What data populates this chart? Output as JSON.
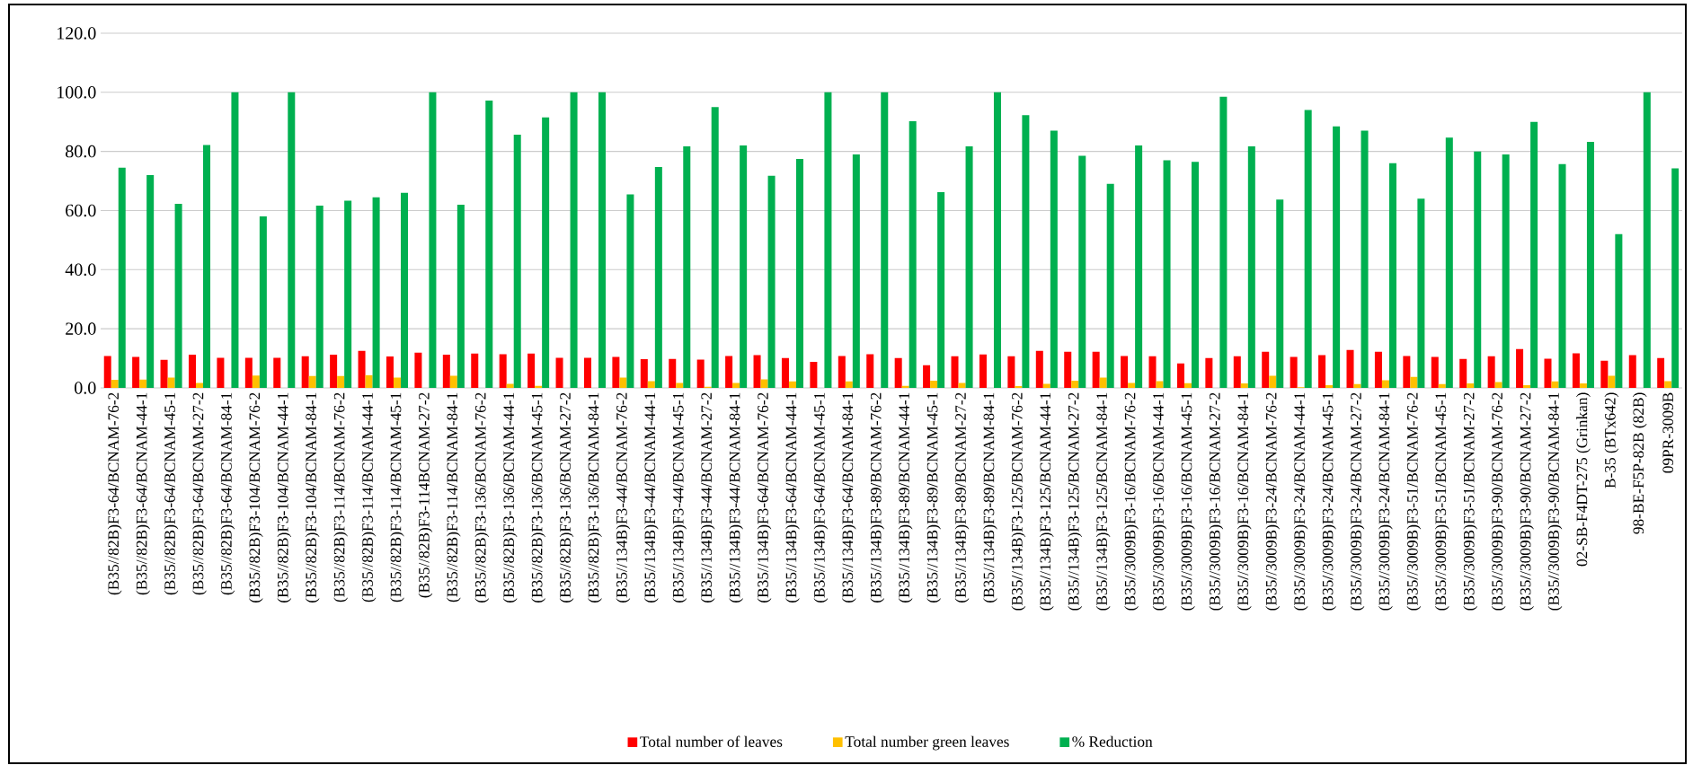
{
  "chart_data": {
    "type": "bar",
    "categories": [
      "(B35//82B)F3-64/BCNAM-76-2",
      "(B35//82B)F3-64/BCNAM-44-1",
      "(B35//82B)F3-64/BCNAM-45-1",
      "(B35//82B)F3-64/BCNAM-27-2",
      "(B35//82B)F3-64/BCNAM-84-1",
      "(B35//82B)F3-104/BCNAM-76-2",
      "(B35//82B)F3-104/BCNAM-44-1",
      "(B35//82B)F3-104/BCNAM-84-1",
      "(B35//82B)F3-114/BCNAM-76-2",
      "(B35//82B)F3-114/BCNAM-44-1",
      "(B35//82B)F3-114/BCNAM-45-1",
      "(B35//82B)F3-114BCNAM-27-2",
      "(B35//82B)F3-114/BCNAM-84-1",
      "(B35//82B)F3-136/BCNAM-76-2",
      "(B35//82B)F3-136/BCNAM-44-1",
      "(B35//82B)F3-136/BCNAM-45-1",
      "(B35//82B)F3-136/BCNAM-27-2",
      "(B35//82B)F3-136/BCNAM-84-1",
      "(B35//134B)F3-44/BCNAM-76-2",
      "(B35//134B)F3-44/BCNAM-44-1",
      "(B35//134B)F3-44/BCNAM-45-1",
      "(B35//134B)F3-44/BCNAM-27-2",
      "(B35//134B)F3-44/BCNAM-84-1",
      "(B35//134B)F3-64/BCNAM-76-2",
      "(B35//134B)F3-64/BCNAM-44-1",
      "(B35//134B)F3-64/BCNAM-45-1",
      "(B35//134B)F3-64/BCNAM-84-1",
      "(B35//134B)F3-89/BCNAM-76-2",
      "(B35//134B)F3-89/BCNAM-44-1",
      "(B35//134B)F3-89/BCNAM-45-1",
      "(B35//134B)F3-89/BCNAM-27-2",
      "(B35//134B)F3-89/BCNAM-84-1",
      "(B35//134B)F3-125/BCNAM-76-2",
      "(B35//134B)F3-125/BCNAM-44-1",
      "(B35//134B)F3-125/BCNAM-27-2",
      "(B35//134B)F3-125/BCNAM-84-1",
      "(B35//3009B)F3-16/BCNAM-76-2",
      "(B35//3009B)F3-16/BCNAM-44-1",
      "(B35//3009B)F3-16/BCNAM-45-1",
      "(B35//3009B)F3-16/BCNAM-27-2",
      "(B35//3009B)F3-16/BCNAM-84-1",
      "(B35//3009B)F3-24/BCNAM-76-2",
      "(B35//3009B)F3-24/BCNAM-44-1",
      "(B35//3009B)F3-24/BCNAM-45-1",
      "(B35//3009B)F3-24/BCNAM-27-2",
      "(B35//3009B)F3-24/BCNAM-84-1",
      "(B35//3009B)F3-51/BCNAM-76-2",
      "(B35//3009B)F3-51/BCNAM-45-1",
      "(B35//3009B)F3-51/BCNAM-27-2",
      "(B35//3009B)F3-90/BCNAM-76-2",
      "(B35//3009B)F3-90/BCNAM-27-2",
      "(B35//3009B)F3-90/BCNAM-84-1",
      "02-SB-F4DT-275 (Grinkan)",
      "B-35 (BTx642)",
      "98-BE-F5P-82B (82B)",
      "09PR-3009B"
    ],
    "series": [
      {
        "name": "Total number of leaves",
        "color": "#ff0000",
        "values": [
          10.8,
          10.5,
          9.5,
          11.2,
          10.2,
          10.2,
          10.2,
          10.7,
          11.2,
          12.5,
          10.6,
          11.9,
          11.2,
          11.6,
          11.4,
          11.6,
          10.2,
          10.2,
          10.5,
          9.7,
          9.8,
          9.6,
          10.8,
          11.1,
          10.1,
          8.8,
          10.8,
          11.4,
          10.1,
          7.7,
          10.7,
          11.3,
          10.7,
          12.5,
          12.2,
          12.2,
          10.8,
          10.7,
          8.3,
          10.1,
          10.7,
          12.2,
          10.5,
          11.1,
          12.8,
          12.2,
          10.8,
          10.5,
          9.8,
          10.7,
          13.1,
          9.9,
          11.7,
          9.2,
          11.1,
          10.1
        ]
      },
      {
        "name": "Total number green leaves",
        "color": "#ffc000",
        "values": [
          2.7,
          2.8,
          3.5,
          1.7,
          0,
          4.2,
          0,
          4.0,
          4.0,
          4.3,
          3.5,
          0,
          4.1,
          null,
          1.4,
          0.7,
          0,
          0,
          3.5,
          2.3,
          1.7,
          0.4,
          1.7,
          2.9,
          2.2,
          0,
          2.2,
          0,
          0.7,
          2.4,
          1.7,
          0,
          0.6,
          1.4,
          2.4,
          3.5,
          1.7,
          2.3,
          1.6,
          0,
          1.5,
          4.1,
          0.2,
          0.9,
          1.3,
          2.6,
          3.7,
          1.3,
          1.5,
          2.0,
          0.9,
          2.2,
          1.5,
          4.1,
          0,
          2.3
        ]
      },
      {
        "name": "% Reduction",
        "color": "#00b050",
        "values": [
          74.5,
          72,
          62.3,
          82.2,
          100,
          58,
          100,
          61.7,
          63.3,
          64.5,
          66,
          100,
          62,
          97.2,
          85.7,
          91.5,
          100,
          100,
          65.5,
          74.7,
          81.7,
          95,
          82,
          71.8,
          77.5,
          100,
          79,
          100,
          90.2,
          66.2,
          81.7,
          100,
          92.3,
          87,
          78.5,
          69,
          82,
          77,
          76.5,
          98.5,
          81.7,
          63.7,
          94,
          88.5,
          87,
          76,
          64,
          84.7,
          80,
          79,
          90,
          75.7,
          83.2,
          52,
          100,
          74.3
        ]
      }
    ],
    "ylim": [
      0,
      120
    ],
    "yticks": [
      {
        "value": 0,
        "label": "0.0"
      },
      {
        "value": 20,
        "label": "20.0"
      },
      {
        "value": 40,
        "label": "40.0"
      },
      {
        "value": 60,
        "label": "60.0"
      },
      {
        "value": 80,
        "label": "80.0"
      },
      {
        "value": 100,
        "label": "100.0"
      },
      {
        "value": 120,
        "label": "120.0"
      }
    ],
    "grid": "y",
    "legend": "bottom"
  }
}
